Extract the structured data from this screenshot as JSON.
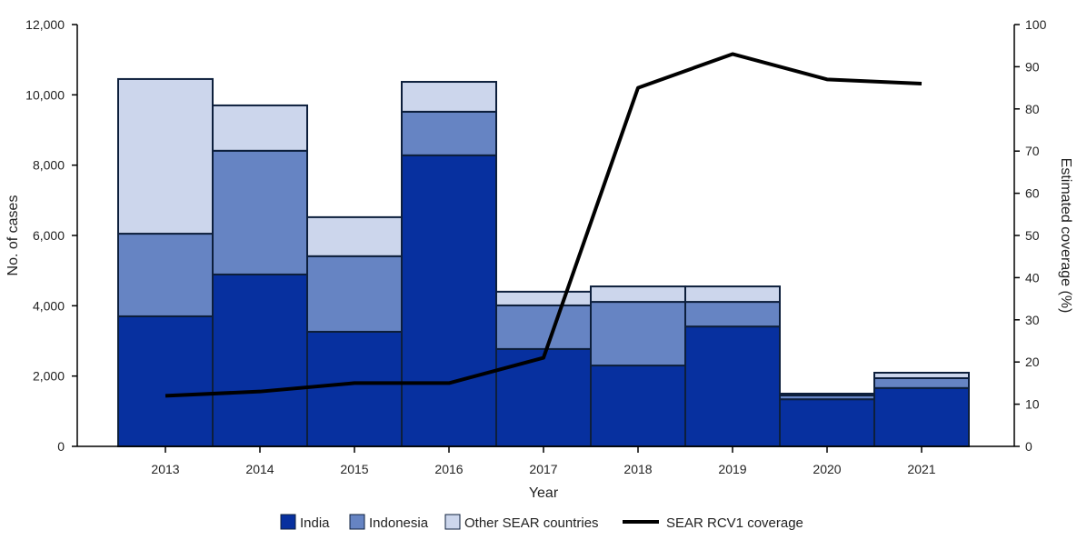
{
  "chart_data": {
    "type": "bar",
    "stacked": true,
    "title": "",
    "xlabel": "Year",
    "ylabel": "No. of cases",
    "y2label": "Estimated coverage (%)",
    "ylim": [
      0,
      12000
    ],
    "y2lim": [
      0,
      100
    ],
    "yticks": [
      "0",
      "2,000",
      "4,000",
      "6,000",
      "8,000",
      "10,000",
      "12,000"
    ],
    "y2ticks": [
      "0",
      "10",
      "20",
      "30",
      "40",
      "50",
      "60",
      "70",
      "80",
      "90",
      "100"
    ],
    "categories": [
      "2013",
      "2014",
      "2015",
      "2016",
      "2017",
      "2018",
      "2019",
      "2020",
      "2021"
    ],
    "series": [
      {
        "name": "India",
        "color": "#07309f",
        "values": [
          3700,
          4890,
          3260,
          8280,
          2770,
          2300,
          3410,
          1340,
          1660
        ]
      },
      {
        "name": "Indonesia",
        "color": "#6684c3",
        "values": [
          2350,
          3520,
          2150,
          1240,
          1240,
          1810,
          700,
          110,
          280
        ]
      },
      {
        "name": "Other SEAR countries",
        "color": "#ccd6ec",
        "values": [
          4400,
          1290,
          1110,
          850,
          390,
          440,
          440,
          50,
          155
        ]
      }
    ],
    "line_series": {
      "name": "SEAR RCV1 coverage",
      "color": "#000000",
      "axis": "right",
      "values": [
        12,
        13,
        15,
        15,
        21,
        85,
        93,
        87,
        86
      ]
    },
    "grid": false,
    "legend": "bottom"
  }
}
